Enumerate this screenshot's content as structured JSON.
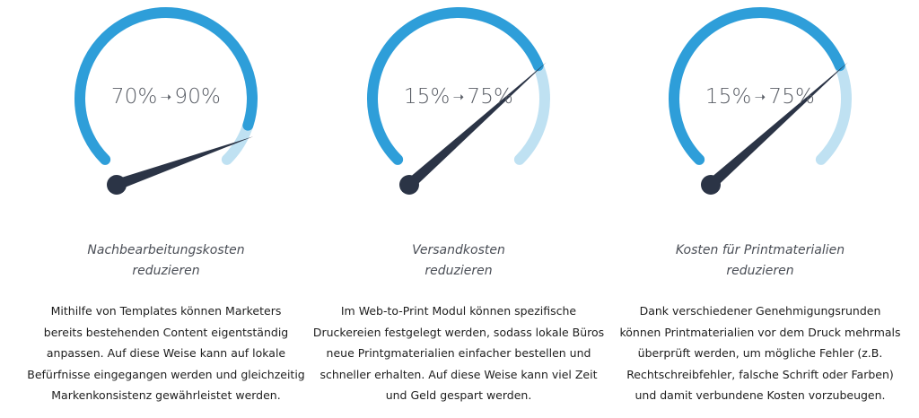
{
  "accent": "#2e9ed9",
  "accent_light": "#bfe1f2",
  "needle_color": "#2b3446",
  "gauges": [
    {
      "from": "70%",
      "to": "90%",
      "needle_fraction": 0.92,
      "caption_line1": "Nachbearbeitungskosten",
      "caption_line2": "reduzieren",
      "description": [
        "Mithilfe von Templates können Marketers",
        "bereits bestehenden Content eigentständig",
        "anpassen. Auf diese Weise kann auf lokale",
        "Befürfnisse eingegangen werden und gleichzeitig",
        "Markenkonsistenz gewährleistet werden."
      ]
    },
    {
      "from": "15%",
      "to": "75%",
      "needle_fraction": 0.75,
      "caption_line1": "Versandkosten",
      "caption_line2": "reduzieren",
      "description": [
        "Im Web-to-Print Modul können spezifische",
        "Druckereien festgelegt werden, sodass lokale Büros",
        "neue Printgmaterialien einfacher bestellen und",
        "schneller erhalten. Auf diese Weise kann viel Zeit",
        "und Geld gespart werden."
      ]
    },
    {
      "from": "15%",
      "to": "75%",
      "needle_fraction": 0.75,
      "caption_line1": "Kosten für Printmaterialien",
      "caption_line2": "reduzieren",
      "description": [
        "Dank verschiedener Genehmigungsrunden",
        "können Printmaterialien vor dem Druck mehrmals",
        "überprüft werden, um mögliche Fehler (z.B.",
        "Rechtschreibfehler, falsche Schrift oder Farben)",
        "und damit verbundene Kosten vorzubeugen."
      ]
    }
  ]
}
